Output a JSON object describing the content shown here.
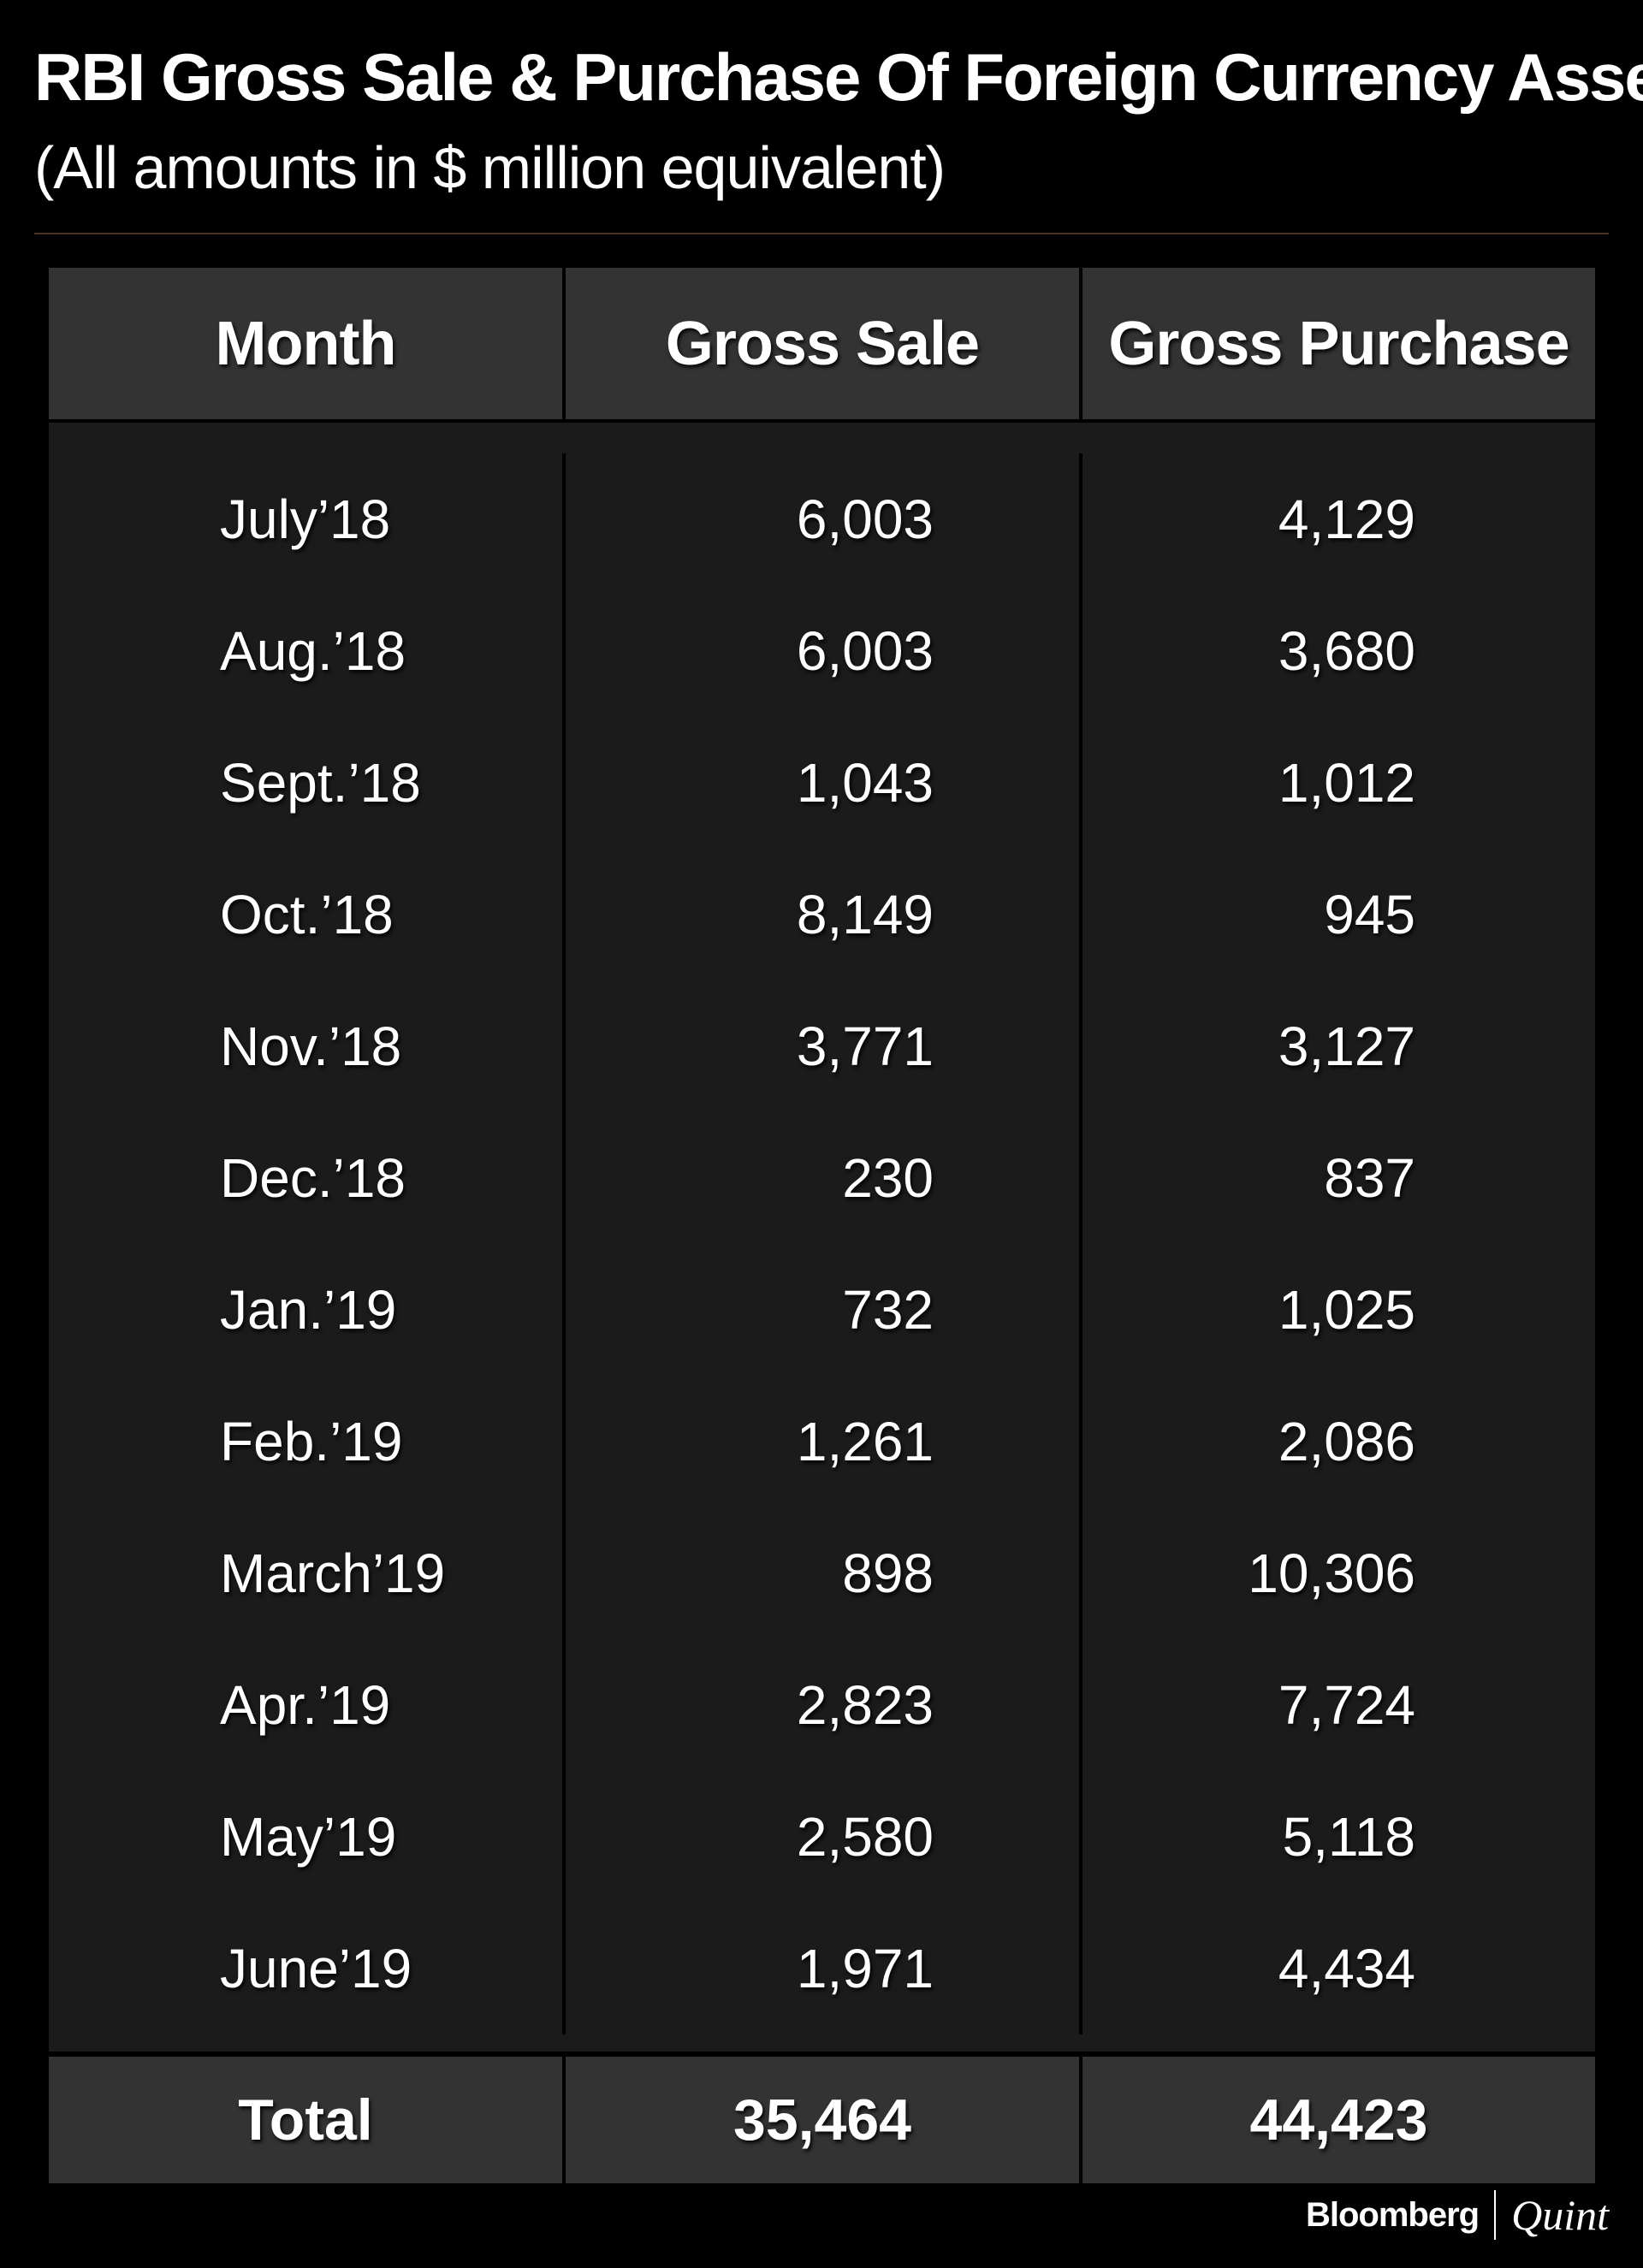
{
  "header": {
    "title": "RBI Gross Sale & Purchase Of Foreign Currency Assets",
    "subtitle": "(All amounts in $ million equivalent)"
  },
  "chart_data": {
    "type": "table",
    "columns": [
      "Month",
      "Gross Sale",
      "Gross Purchase"
    ],
    "rows": [
      [
        "July’18",
        "6,003",
        "4,129"
      ],
      [
        "Aug.’18",
        "6,003",
        "3,680"
      ],
      [
        "Sept.’18",
        "1,043",
        "1,012"
      ],
      [
        "Oct.’18",
        "8,149",
        "945"
      ],
      [
        "Nov.’18",
        "3,771",
        "3,127"
      ],
      [
        "Dec.’18",
        "230",
        "837"
      ],
      [
        "Jan.’19",
        "732",
        "1,025"
      ],
      [
        "Feb.’19",
        "1,261",
        "2,086"
      ],
      [
        "March’19",
        "898",
        "10,306"
      ],
      [
        "Apr.’19",
        "2,823",
        "7,724"
      ],
      [
        "May’19",
        "2,580",
        "5,118"
      ],
      [
        "June’19",
        "1,971",
        "4,434"
      ]
    ],
    "total": [
      "Total",
      "35,464",
      "44,423"
    ]
  },
  "footer": {
    "brand_primary": "Bloomberg",
    "brand_secondary": "Quint"
  },
  "colors": {
    "background": "#000000",
    "header_cell": "#333333",
    "body_cell": "#1b1b1b",
    "text": "#ffffff"
  }
}
